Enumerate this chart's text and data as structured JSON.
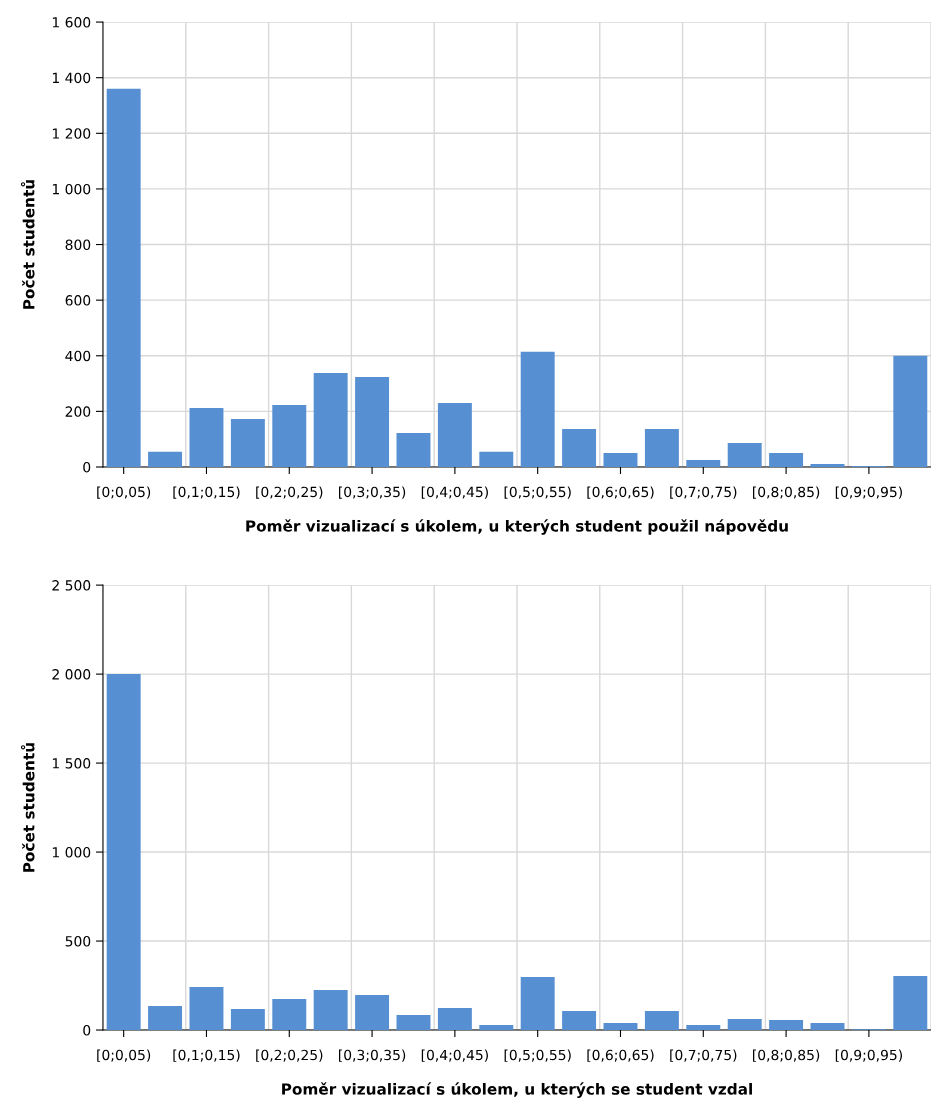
{
  "chart_data": [
    {
      "type": "bar",
      "xlabel": "Poměr vizualizací s úkolem, u kterých student použil nápovědu",
      "ylabel": "Počet studentů",
      "categories": [
        "[0;0,05)",
        null,
        "[0,1;0,15)",
        null,
        "[0,2;0,25)",
        null,
        "[0,3;0,35)",
        null,
        "[0,4;0,45)",
        null,
        "[0,5;0,55)",
        null,
        "[0,6;0,65)",
        null,
        "[0,7;0,75)",
        null,
        "[0,8;0,85)",
        null,
        "[0,9;0,95)",
        null
      ],
      "values": [
        1360,
        55,
        212,
        173,
        223,
        338,
        324,
        122,
        230,
        55,
        414,
        137,
        50,
        137,
        25,
        86,
        50,
        11,
        4,
        400
      ],
      "color": "#568fd2",
      "ylim": [
        0,
        1600
      ],
      "yticks": [
        0,
        200,
        400,
        600,
        800,
        {
          "value": 1000,
          "label": "1 000"
        },
        {
          "value": 1200,
          "label": "1 200"
        },
        {
          "value": 1400,
          "label": "1 400"
        },
        {
          "value": 1600,
          "label": "1 600"
        }
      ],
      "grid": true
    },
    {
      "type": "bar",
      "xlabel": "Poměr vizualizací s úkolem, u kterých se student vzdal",
      "ylabel": "Počet studentů",
      "categories": [
        "[0;0,05)",
        null,
        "[0,1;0,15)",
        null,
        "[0,2;0,25)",
        null,
        "[0,3;0,35)",
        null,
        "[0,4;0,45)",
        null,
        "[0,5;0,55)",
        null,
        "[0,6;0,65)",
        null,
        "[0,7;0,75)",
        null,
        "[0,8;0,85)",
        null,
        "[0,9;0,95)",
        null
      ],
      "values": [
        2000,
        135,
        242,
        118,
        174,
        225,
        197,
        84,
        124,
        28,
        298,
        107,
        39,
        107,
        28,
        62,
        56,
        39,
        5,
        303
      ],
      "color": "#568fd2",
      "ylim": [
        0,
        2500
      ],
      "yticks": [
        0,
        500,
        {
          "value": 1000,
          "label": "1 000"
        },
        {
          "value": 1500,
          "label": "1 500"
        },
        {
          "value": 2000,
          "label": "2 000"
        },
        {
          "value": 2500,
          "label": "2 500"
        }
      ],
      "grid": true
    }
  ]
}
